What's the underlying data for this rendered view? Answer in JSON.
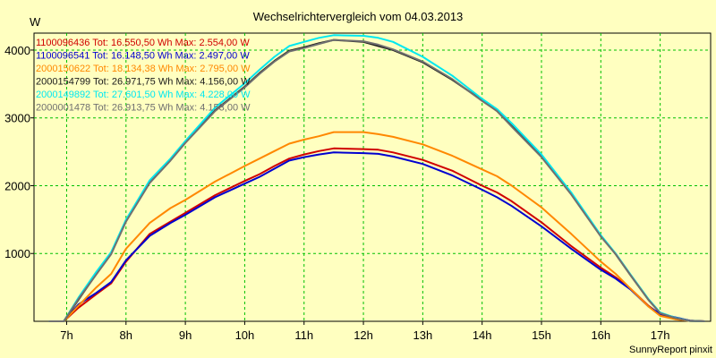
{
  "chart_data": {
    "type": "line",
    "title": "Wechselrichtervergleich vom 04.03.2013",
    "ylabel": "W",
    "xlabel": "",
    "footer": "SunnyReport pinxit",
    "xlim": [
      6.45,
      17.85
    ],
    "ylim": [
      0,
      4250
    ],
    "grid": true,
    "x_ticks": [
      7,
      8,
      9,
      10,
      11,
      12,
      13,
      14,
      15,
      16,
      17
    ],
    "x_tick_labels": [
      "7h",
      "8h",
      "9h",
      "10h",
      "11h",
      "12h",
      "13h",
      "14h",
      "15h",
      "16h",
      "17h"
    ],
    "y_ticks": [
      1000,
      2000,
      3000,
      4000
    ],
    "y_tick_labels": [
      "1000",
      "2000",
      "3000",
      "4000"
    ],
    "x": [
      6.7,
      6.95,
      7.2,
      7.5,
      7.75,
      8.0,
      8.4,
      8.75,
      9.0,
      9.5,
      10.0,
      10.25,
      10.5,
      10.75,
      11.0,
      11.25,
      11.5,
      12.0,
      12.25,
      12.5,
      13.0,
      13.5,
      14.0,
      14.25,
      14.5,
      15.0,
      15.5,
      16.0,
      16.25,
      16.5,
      16.8,
      17.0,
      17.25,
      17.5,
      17.75
    ],
    "series": [
      {
        "name": "1100096436",
        "legend": "1100096436 Tot: 16.550,50 Wh Max: 2.554,00 W",
        "color": "#d00000",
        "values": [
          0,
          0,
          200,
          400,
          560,
          880,
          1290,
          1470,
          1600,
          1860,
          2070,
          2170,
          2290,
          2400,
          2460,
          2510,
          2550,
          2540,
          2530,
          2490,
          2380,
          2220,
          2000,
          1900,
          1770,
          1460,
          1110,
          790,
          650,
          480,
          230,
          100,
          50,
          10,
          0
        ]
      },
      {
        "name": "1100096541",
        "legend": "1100096541 Tot: 16.148,50 Wh Max: 2.497,00 W",
        "color": "#0000d0",
        "values": [
          0,
          0,
          250,
          420,
          580,
          900,
          1260,
          1450,
          1570,
          1830,
          2030,
          2130,
          2250,
          2370,
          2420,
          2460,
          2490,
          2480,
          2470,
          2430,
          2320,
          2150,
          1940,
          1830,
          1700,
          1400,
          1070,
          760,
          630,
          470,
          220,
          110,
          60,
          10,
          0
        ]
      },
      {
        "name": "2000150622",
        "legend": "2000150622 Tot: 18.134,38 Wh Max: 2.795,00 W",
        "color": "#ff8800",
        "values": [
          0,
          0,
          230,
          500,
          700,
          1070,
          1450,
          1670,
          1790,
          2060,
          2290,
          2400,
          2510,
          2620,
          2680,
          2730,
          2790,
          2790,
          2760,
          2720,
          2610,
          2440,
          2240,
          2140,
          2000,
          1680,
          1290,
          880,
          700,
          480,
          220,
          80,
          30,
          5,
          0
        ]
      },
      {
        "name": "2000154799",
        "legend": "2000154799 Tot: 26.971,75 Wh Max: 4.156,00 W",
        "color": "#1a1a1a",
        "values": [
          0,
          0,
          320,
          700,
          1000,
          1480,
          2050,
          2380,
          2640,
          3110,
          3460,
          3660,
          3840,
          3990,
          4040,
          4100,
          4150,
          4120,
          4060,
          4000,
          3820,
          3560,
          3260,
          3100,
          2880,
          2430,
          1880,
          1260,
          990,
          680,
          320,
          120,
          50,
          5,
          0
        ]
      },
      {
        "name": "2000149892",
        "legend": "2000149892 Tot: 27.601,50 Wh Max: 4.228,00 W",
        "color": "#00e8f0",
        "values": [
          0,
          0,
          350,
          730,
          1020,
          1500,
          2080,
          2400,
          2660,
          3150,
          3510,
          3710,
          3900,
          4060,
          4120,
          4180,
          4220,
          4210,
          4180,
          4120,
          3900,
          3620,
          3280,
          3130,
          2920,
          2460,
          1900,
          1270,
          1000,
          690,
          330,
          130,
          55,
          5,
          0
        ]
      },
      {
        "name": "2000001478",
        "legend": "2000001478 Tot: 26.913,75 Wh Max: 4.153,00 W",
        "color": "#707070",
        "values": [
          0,
          0,
          330,
          690,
          990,
          1470,
          2040,
          2370,
          2630,
          3100,
          3450,
          3650,
          3830,
          3980,
          4030,
          4090,
          4150,
          4130,
          4080,
          4010,
          3830,
          3570,
          3250,
          3100,
          2870,
          2420,
          1870,
          1250,
          990,
          680,
          320,
          120,
          50,
          5,
          0
        ]
      }
    ]
  }
}
